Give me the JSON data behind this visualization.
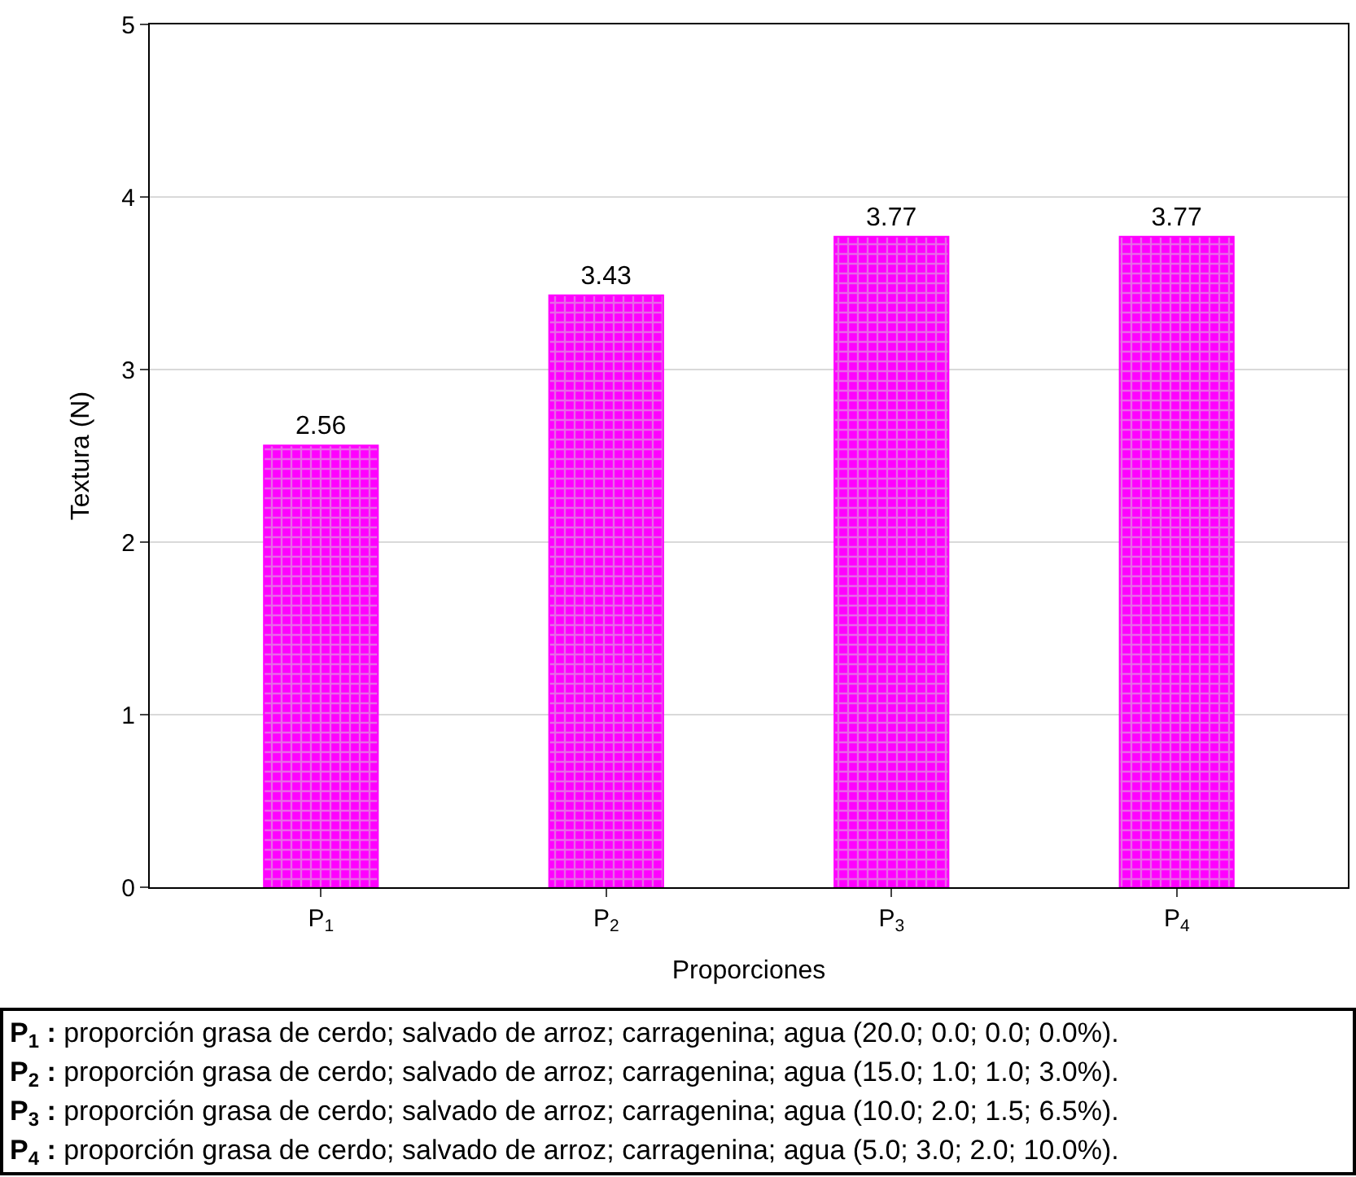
{
  "chart_data": {
    "type": "bar",
    "xlabel": "Proporciones",
    "ylabel": "Textura (N)",
    "categories": [
      "P$_{1}$",
      "P$_{2}$",
      "P$_{3}$",
      "P$_{4}$"
    ],
    "values": [
      2.56,
      3.43,
      3.77,
      3.77
    ],
    "color": "#ff00ff",
    "data_labels": true,
    "ylim": [
      0,
      5
    ],
    "yticks": [
      0,
      1,
      2,
      3,
      4,
      5
    ],
    "grid": "y",
    "annotations": [
      "P$_{1}$ : proporción grasa de cerdo; salvado de arroz; carragenina; agua (20.0; 0.0; 0.0; 0.0%).",
      "P$_{2}$ : proporción grasa de cerdo; salvado de arroz; carragenina; agua (15.0; 1.0; 1.0; 3.0%).",
      "P$_{3}$ : proporción grasa de cerdo; salvado de arroz; carragenina; agua (10.0; 2.0; 1.5; 6.5%).",
      "P$_{4}$ : proporción grasa de cerdo; salvado de arroz; carragenina; agua (5.0; 3.0; 2.0; 10.0%)."
    ]
  }
}
